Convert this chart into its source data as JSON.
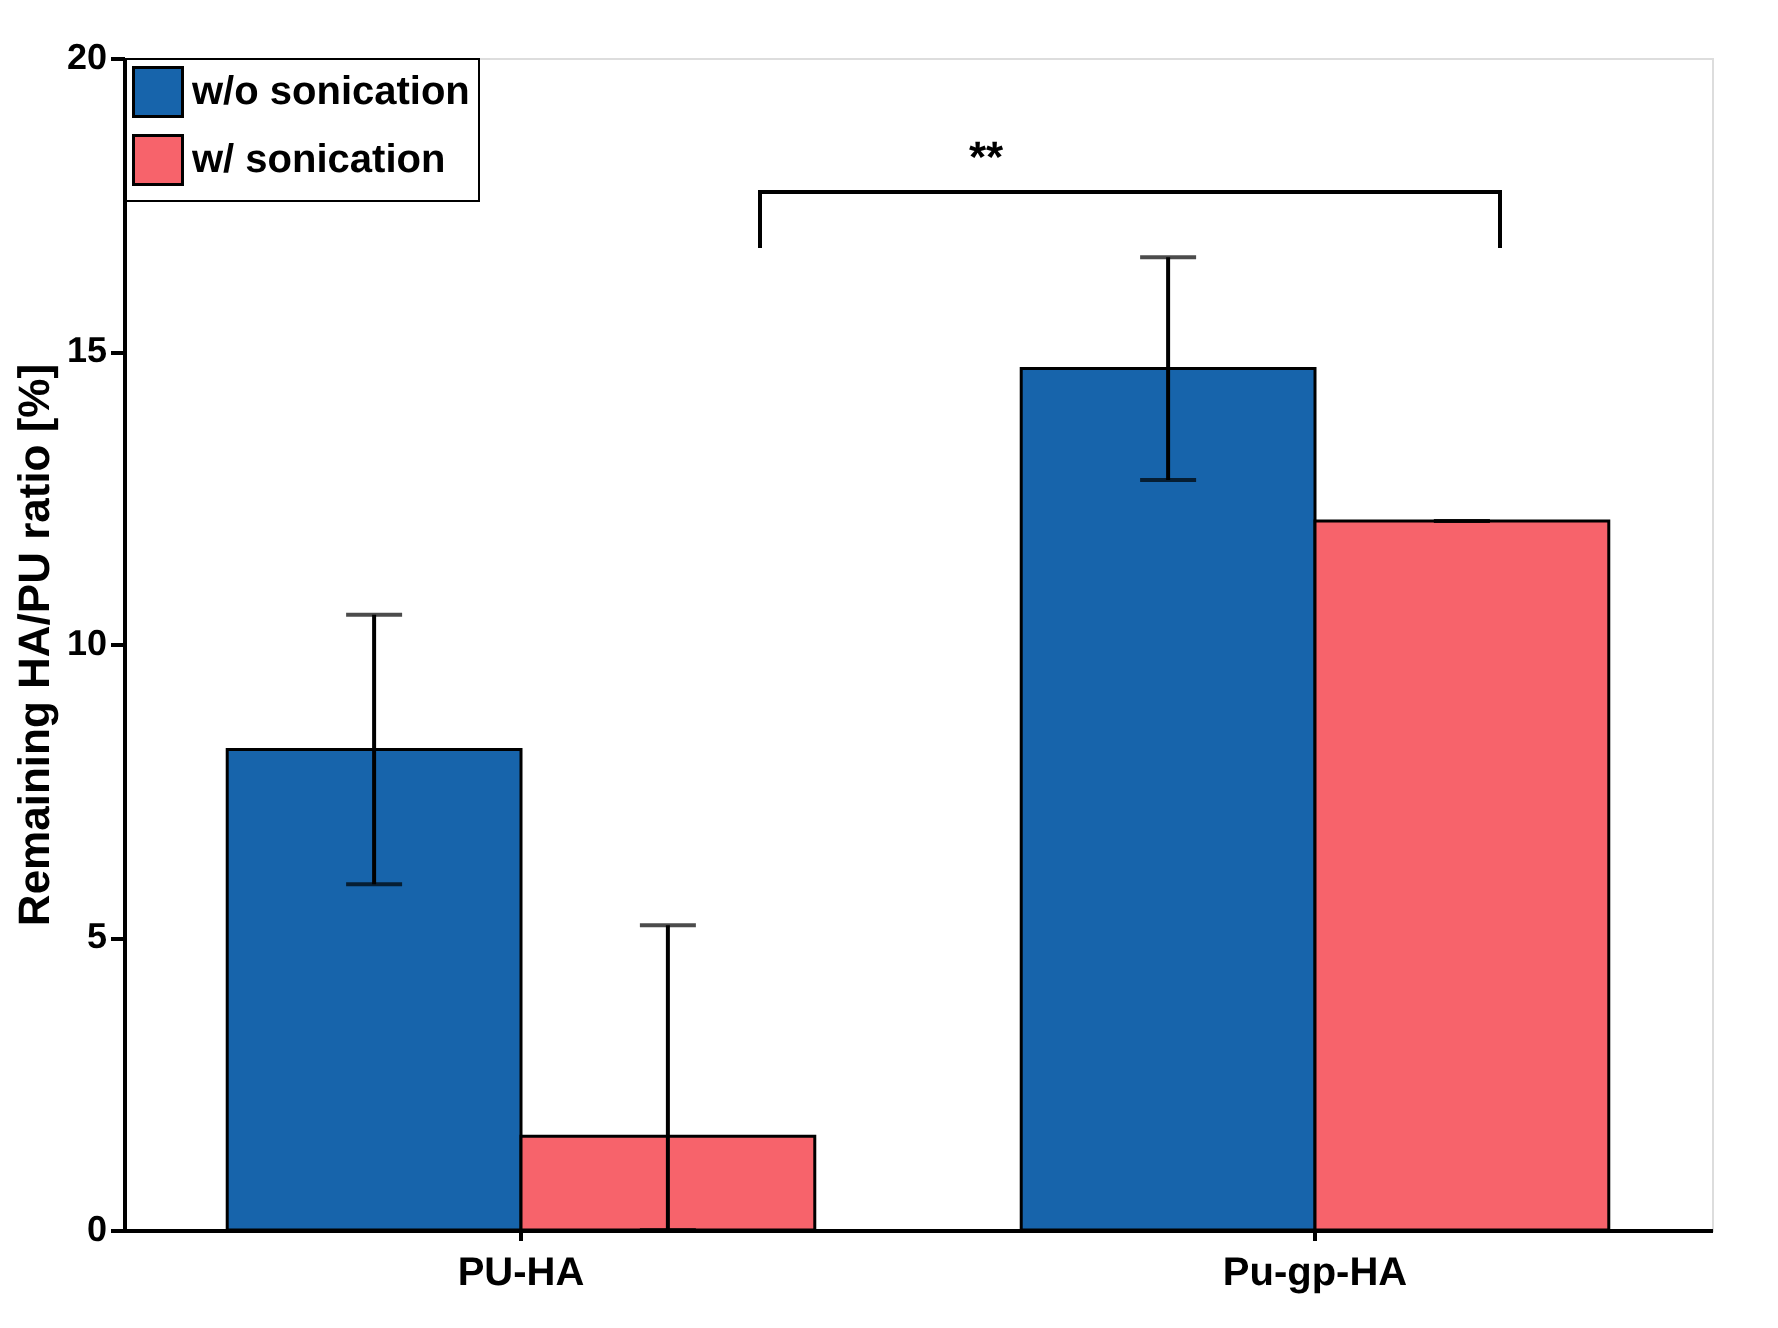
{
  "chart_data": {
    "type": "bar",
    "ylabel": "Remaining HA/PU ratio [%]",
    "categories": [
      "PU-HA",
      "Pu-gp-HA"
    ],
    "series": [
      {
        "name": "w/o sonication",
        "color": "#1764ab",
        "values": [
          8.2,
          14.7
        ],
        "errors": [
          [
            5.9,
            10.5
          ],
          [
            12.8,
            16.6
          ]
        ]
      },
      {
        "name": "w/ sonication",
        "color": "#f7636b",
        "values": [
          1.6,
          12.1
        ],
        "errors": [
          [
            0,
            5.2
          ],
          [
            12.1,
            12.1
          ]
        ]
      }
    ],
    "ylim": [
      0,
      20
    ],
    "yticks": [
      0,
      5,
      10,
      15,
      20
    ],
    "grid": false,
    "legend": "top left",
    "annotations": [
      "**"
    ]
  }
}
